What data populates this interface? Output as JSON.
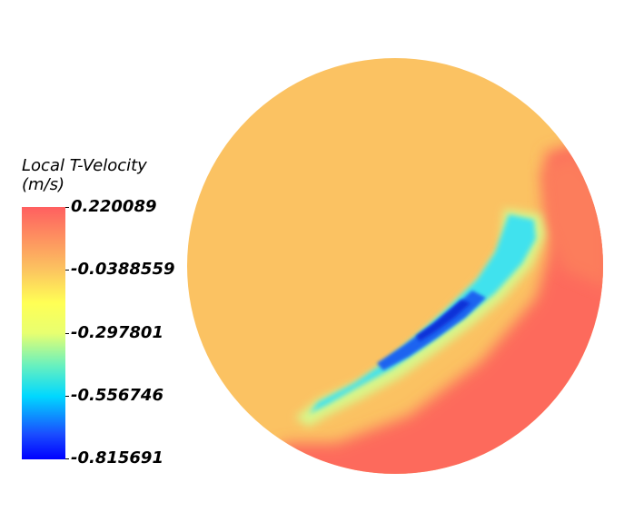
{
  "legend": {
    "title_line1": "Local T-Velocity",
    "title_line2": "(m/s)",
    "ticks": [
      "0.220089",
      "-0.0388559",
      "-0.297801",
      "-0.556746",
      "-0.815691"
    ],
    "colormap": [
      "#0000ff",
      "#00e6ff",
      "#e6ff80",
      "#ffff66",
      "#fcc060",
      "#ff6060"
    ]
  },
  "field": {
    "background_color": "#fbc262",
    "high_color": "#fd6a5c",
    "low_color": "#1f3fe6"
  }
}
